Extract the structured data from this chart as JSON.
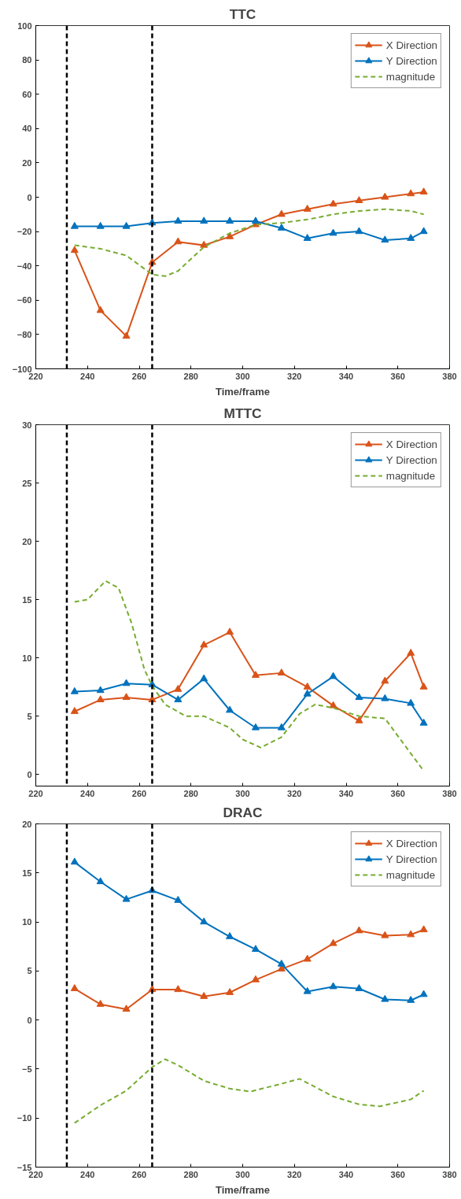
{
  "chart_data": [
    {
      "type": "line",
      "title": "TTC",
      "xlabel": "Time/frame",
      "xlim": [
        220,
        380
      ],
      "xticks": [
        220,
        240,
        260,
        280,
        300,
        320,
        340,
        360,
        380
      ],
      "ylim": [
        -100,
        100
      ],
      "yticks": [
        -100,
        -80,
        -60,
        -40,
        -20,
        0,
        20,
        40,
        60,
        80,
        100
      ],
      "grid": false,
      "legend": "top right",
      "ref_lines": [
        {
          "axis": "x",
          "value": 232,
          "line_style": "dashed",
          "color": "#000000"
        },
        {
          "axis": "x",
          "value": 265,
          "line_style": "dashed",
          "color": "#000000"
        }
      ],
      "series": [
        {
          "name": "X Direction",
          "color": "#d95319",
          "marker": "triangle",
          "line_style": "solid",
          "x": [
            235,
            245,
            255,
            265,
            275,
            285,
            295,
            305,
            315,
            325,
            335,
            345,
            355,
            365,
            370
          ],
          "values": [
            -31,
            -66,
            -81,
            -38,
            -26,
            -28,
            -23,
            -16,
            -10,
            -7,
            -4,
            -2,
            0,
            2,
            3
          ]
        },
        {
          "name": "Y Direction",
          "color": "#0072bd",
          "marker": "triangle",
          "line_style": "solid",
          "x": [
            235,
            245,
            255,
            265,
            275,
            285,
            295,
            305,
            315,
            325,
            335,
            345,
            355,
            365,
            370
          ],
          "values": [
            -17,
            -17,
            -17,
            -15,
            -14,
            -14,
            -14,
            -14,
            -18,
            -24,
            -21,
            -20,
            -25,
            -24,
            -20
          ]
        },
        {
          "name": "magnitude",
          "color": "#77ac30",
          "marker": "none",
          "line_style": "dashed",
          "x": [
            235,
            245,
            255,
            265,
            270,
            275,
            285,
            295,
            305,
            315,
            325,
            335,
            345,
            355,
            365,
            370
          ],
          "values": [
            -28,
            -30,
            -34,
            -45,
            -46,
            -43,
            -29,
            -21,
            -16,
            -15,
            -13,
            -10,
            -8,
            -7,
            -8,
            -10
          ]
        }
      ]
    },
    {
      "type": "line",
      "title": "MTTC",
      "xlim": [
        220,
        380
      ],
      "xticks": [
        220,
        240,
        260,
        280,
        300,
        320,
        340,
        360,
        380
      ],
      "ylim": [
        -1,
        30
      ],
      "yticks": [
        0,
        5,
        10,
        15,
        20,
        25,
        30
      ],
      "grid": false,
      "legend": "top right",
      "ref_lines": [
        {
          "axis": "x",
          "value": 232,
          "line_style": "dashed",
          "color": "#000000"
        },
        {
          "axis": "x",
          "value": 265,
          "line_style": "dashed",
          "color": "#000000"
        }
      ],
      "series": [
        {
          "name": "X Direction",
          "color": "#d95319",
          "marker": "triangle",
          "line_style": "solid",
          "x": [
            235,
            245,
            255,
            265,
            275,
            285,
            295,
            305,
            315,
            325,
            335,
            345,
            355,
            365,
            370
          ],
          "values": [
            5.4,
            6.4,
            6.6,
            6.4,
            7.3,
            11.1,
            12.2,
            8.5,
            8.7,
            7.5,
            5.9,
            4.6,
            8.0,
            10.4,
            7.5
          ]
        },
        {
          "name": "Y Direction",
          "color": "#0072bd",
          "marker": "triangle",
          "line_style": "solid",
          "x": [
            235,
            245,
            255,
            265,
            275,
            285,
            295,
            305,
            315,
            325,
            335,
            345,
            355,
            365,
            370
          ],
          "values": [
            7.1,
            7.2,
            7.8,
            7.7,
            6.4,
            8.2,
            5.5,
            4.0,
            4.0,
            6.9,
            8.4,
            6.6,
            6.5,
            6.1,
            4.4
          ]
        },
        {
          "name": "magnitude",
          "color": "#77ac30",
          "marker": "none",
          "line_style": "dashed",
          "x": [
            235,
            240,
            247,
            252,
            257,
            262,
            265,
            270,
            278,
            285,
            295,
            300,
            307,
            315,
            322,
            328,
            335,
            345,
            350,
            355,
            360,
            365,
            370
          ],
          "values": [
            14.8,
            15.0,
            16.6,
            16.0,
            13.0,
            9.0,
            7.6,
            6.0,
            5.0,
            5.0,
            4.0,
            3.0,
            2.3,
            3.2,
            5.2,
            6.0,
            5.7,
            5.0,
            4.9,
            4.8,
            3.3,
            1.8,
            0.3
          ]
        }
      ]
    },
    {
      "type": "line",
      "title": "DRAC",
      "xlabel": "Time/frame",
      "xlim": [
        220,
        380
      ],
      "xticks": [
        220,
        240,
        260,
        280,
        300,
        320,
        340,
        360,
        380
      ],
      "ylim": [
        -15,
        20
      ],
      "yticks": [
        -15,
        -10,
        -5,
        0,
        5,
        10,
        15,
        20
      ],
      "grid": false,
      "legend": "top right",
      "ref_lines": [
        {
          "axis": "x",
          "value": 232,
          "line_style": "dashed",
          "color": "#000000"
        },
        {
          "axis": "x",
          "value": 265,
          "line_style": "dashed",
          "color": "#000000"
        }
      ],
      "series": [
        {
          "name": "X Direction",
          "color": "#d95319",
          "marker": "triangle",
          "line_style": "solid",
          "x": [
            235,
            245,
            255,
            265,
            275,
            285,
            295,
            305,
            315,
            325,
            335,
            345,
            355,
            365,
            370
          ],
          "values": [
            3.2,
            1.6,
            1.1,
            3.1,
            3.1,
            2.4,
            2.8,
            4.1,
            5.2,
            6.2,
            7.8,
            9.1,
            8.6,
            8.7,
            9.2
          ]
        },
        {
          "name": "Y Direction",
          "color": "#0072bd",
          "marker": "triangle",
          "line_style": "solid",
          "x": [
            235,
            245,
            255,
            265,
            275,
            285,
            295,
            305,
            315,
            325,
            335,
            345,
            355,
            365,
            370
          ],
          "values": [
            16.1,
            14.1,
            12.3,
            13.2,
            12.2,
            10.0,
            8.5,
            7.2,
            5.7,
            2.9,
            3.4,
            3.2,
            2.1,
            2.0,
            2.6
          ]
        },
        {
          "name": "magnitude",
          "color": "#77ac30",
          "marker": "none",
          "line_style": "dashed",
          "x": [
            235,
            245,
            255,
            265,
            270,
            275,
            285,
            295,
            303,
            315,
            322,
            335,
            345,
            353,
            365,
            370
          ],
          "values": [
            -10.5,
            -8.7,
            -7.2,
            -4.8,
            -4.0,
            -4.6,
            -6.2,
            -7.0,
            -7.3,
            -6.5,
            -6.0,
            -7.8,
            -8.6,
            -8.8,
            -8.1,
            -7.2
          ]
        }
      ]
    }
  ]
}
